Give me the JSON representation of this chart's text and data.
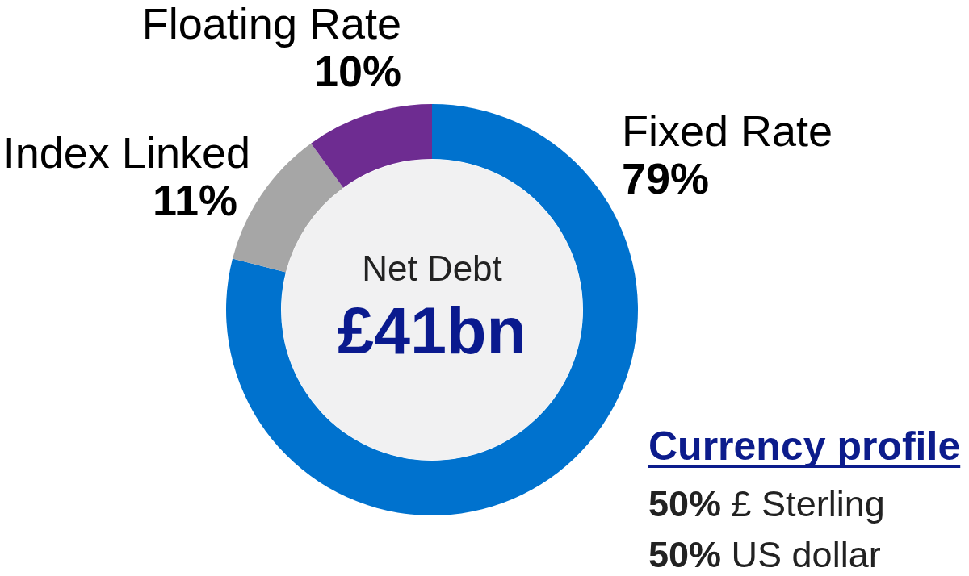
{
  "chart_data": [
    {
      "type": "donut",
      "categories": [
        "Fixed Rate",
        "Index Linked",
        "Floating Rate"
      ],
      "values": [
        79,
        11,
        10
      ],
      "colors": [
        "#0072ce",
        "#a6a6a6",
        "#6e2c91"
      ],
      "value_labels": [
        "79%",
        "11%",
        "10%"
      ],
      "annotations": [
        "Net Debt",
        "£41bn"
      ]
    },
    {
      "type": "other",
      "title": "Currency profile",
      "annotations": [
        "50% £ Sterling",
        "50% US dollar"
      ]
    }
  ]
}
